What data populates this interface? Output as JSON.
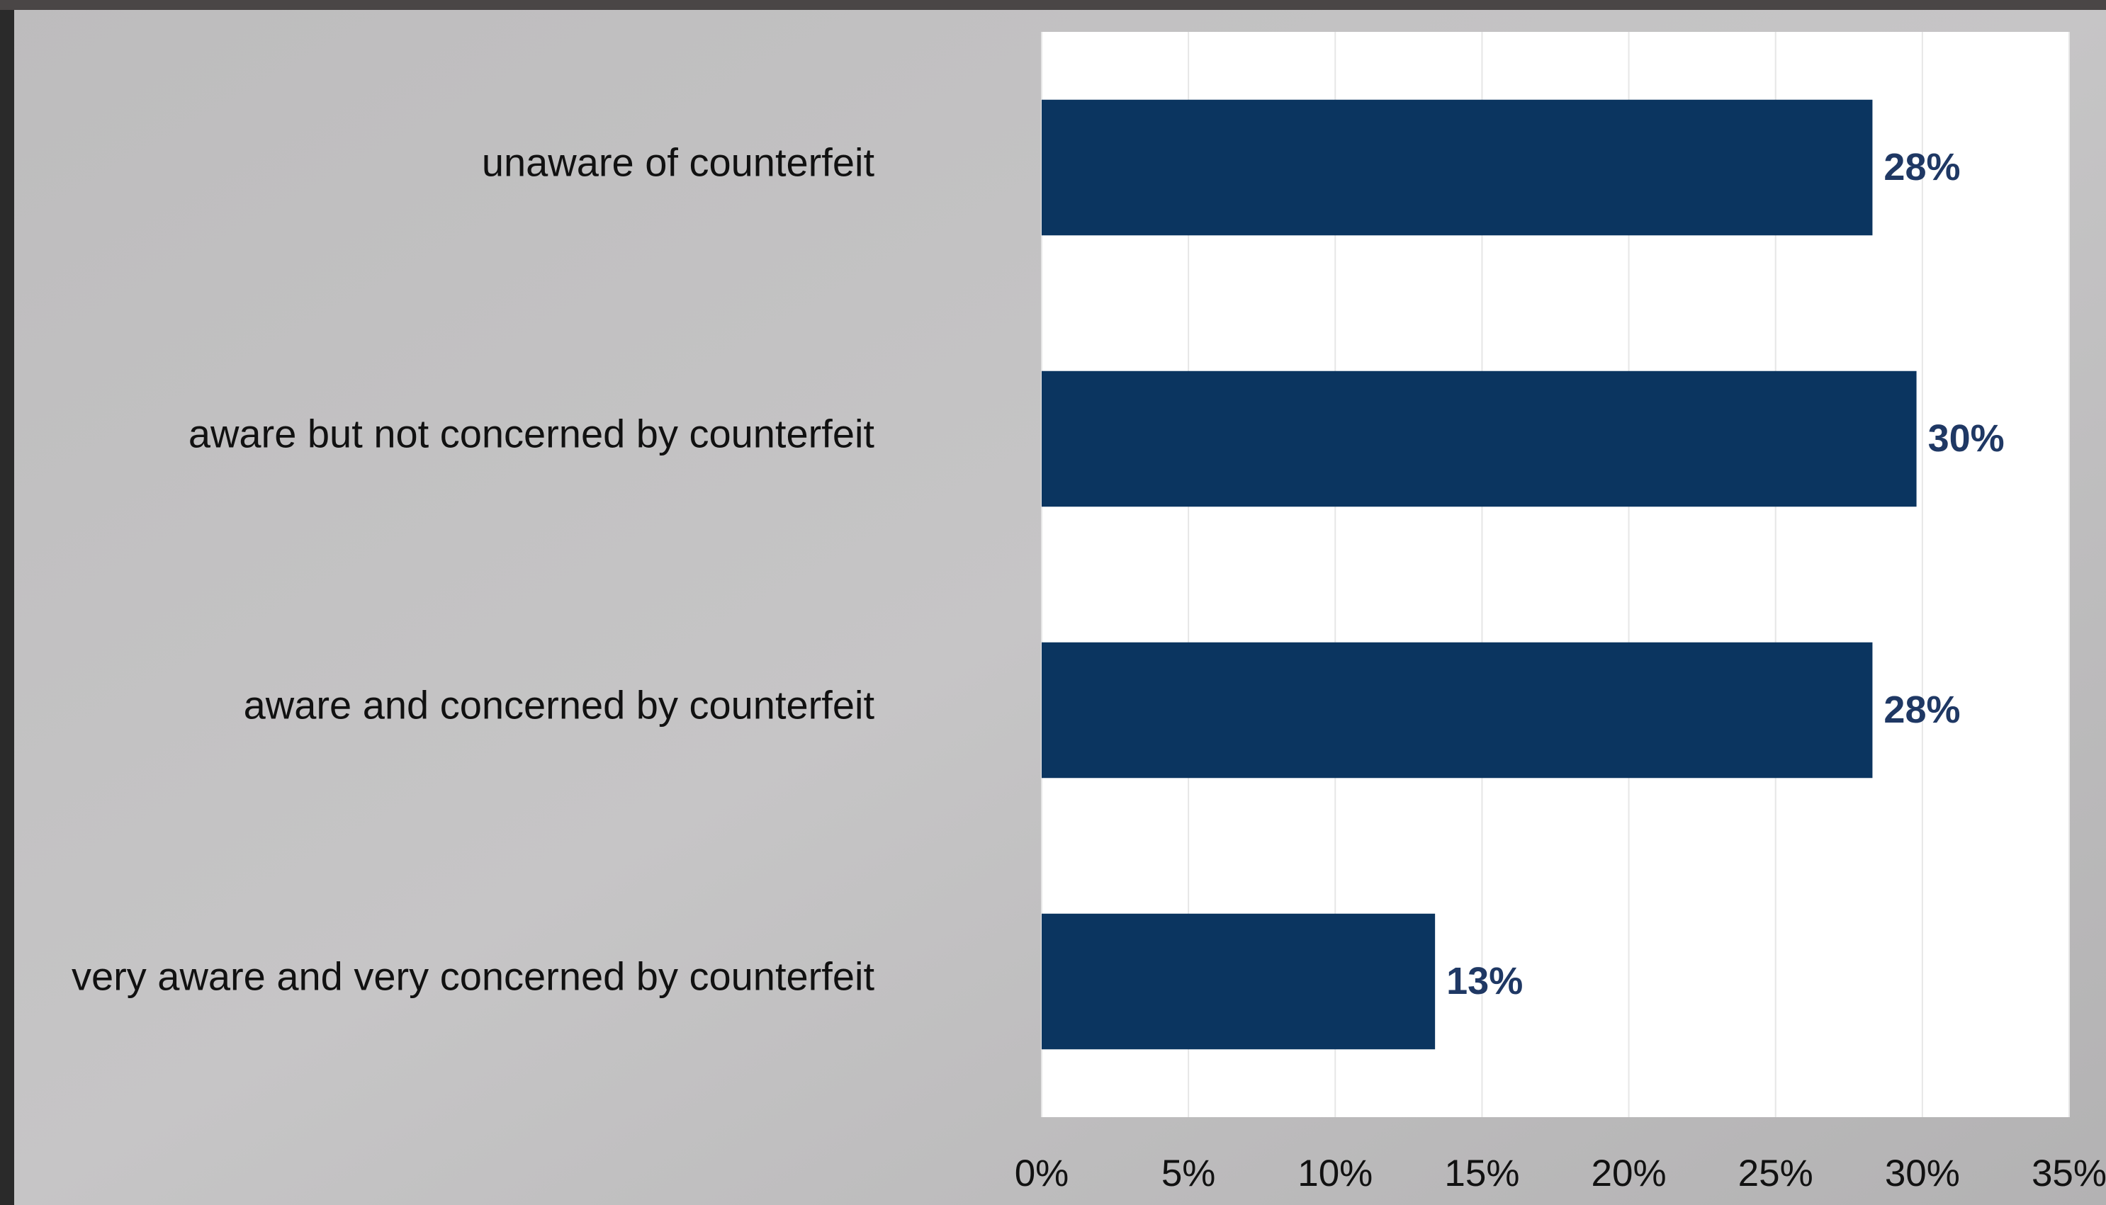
{
  "chart_data": {
    "type": "bar",
    "orientation": "horizontal",
    "categories": [
      "unaware of counterfeit",
      "aware but not concerned by counterfeit",
      "aware and concerned by counterfeit",
      "very aware and very concerned by counterfeit"
    ],
    "values": [
      28.3,
      29.8,
      28.3,
      13.4
    ],
    "value_labels": [
      "28%",
      "30%",
      "28%",
      "13%"
    ],
    "color": "#0b3560",
    "xlim": [
      0,
      35
    ],
    "xticks": [
      {
        "value": 0,
        "label": "0%"
      },
      {
        "value": 5,
        "label": "5%"
      },
      {
        "value": 10,
        "label": "10%"
      },
      {
        "value": 15,
        "label": "15%"
      },
      {
        "value": 20,
        "label": "20%"
      },
      {
        "value": 25,
        "label": "25%"
      },
      {
        "value": 30,
        "label": "30%"
      },
      {
        "value": 35,
        "label": "35%"
      }
    ],
    "grid": true
  }
}
